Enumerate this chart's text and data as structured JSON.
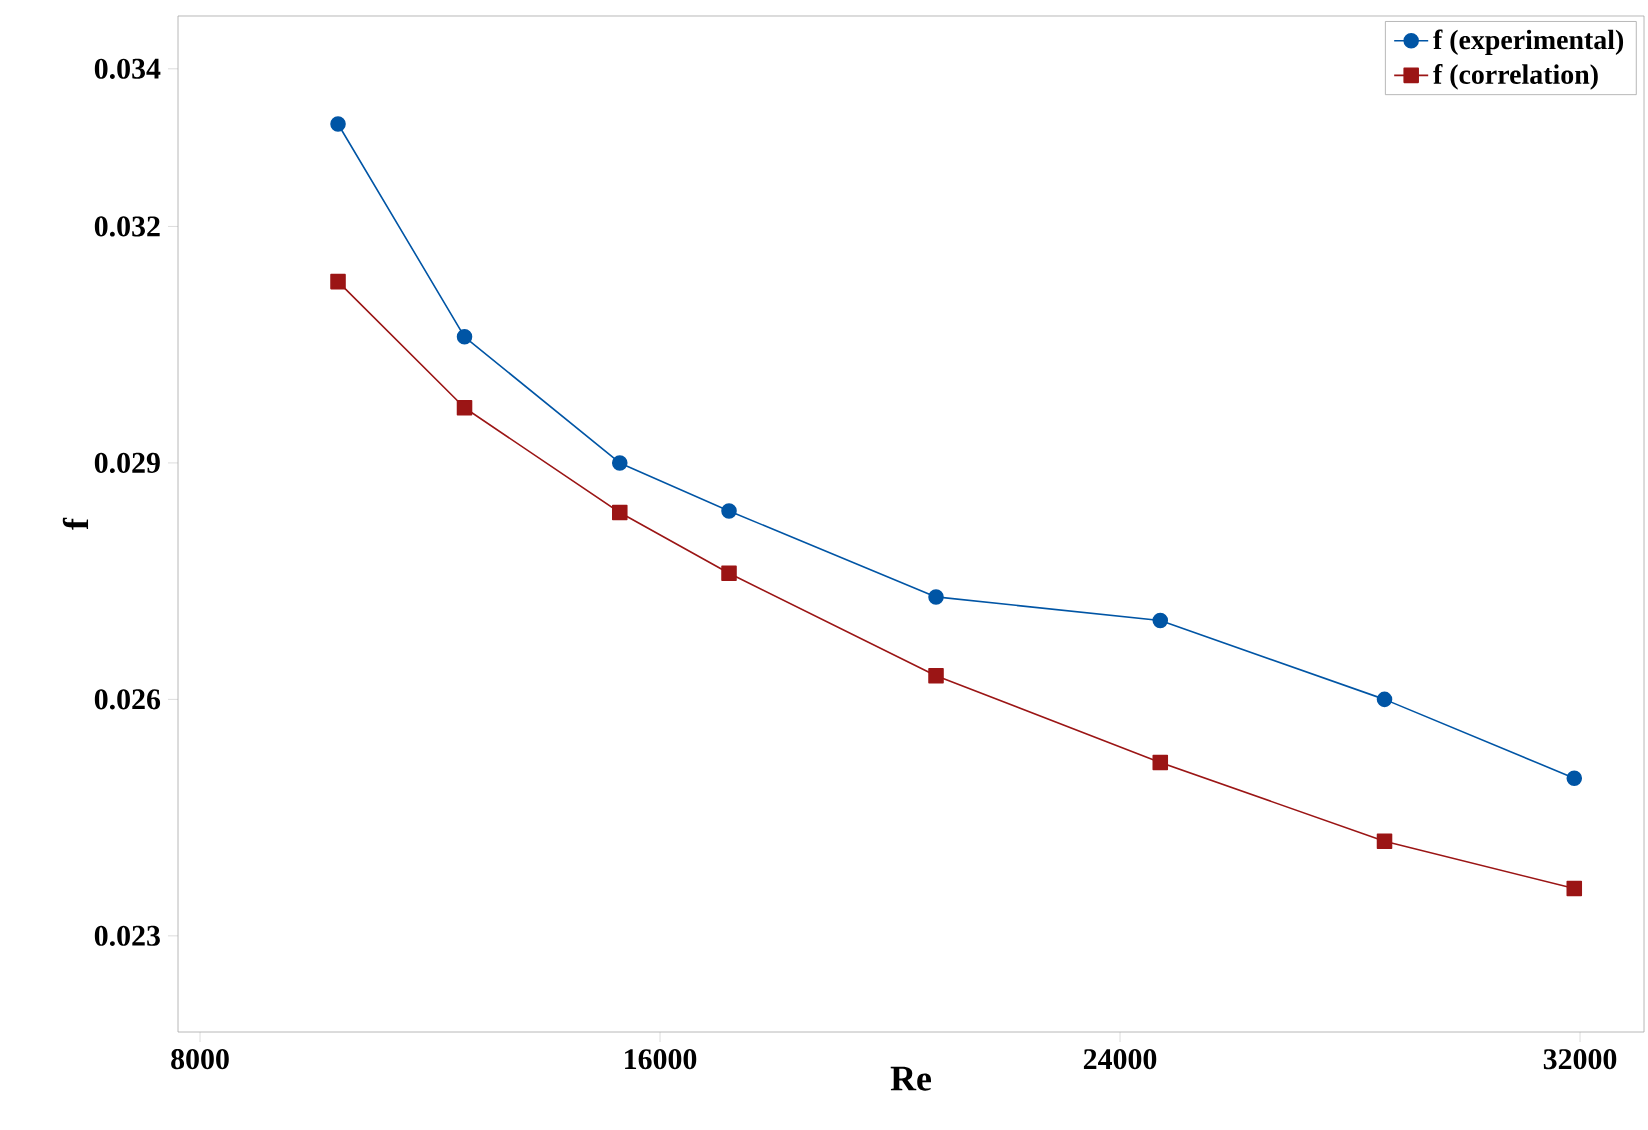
{
  "chart_data": {
    "type": "line",
    "xlabel": "Re",
    "ylabel": "f",
    "x": [
      10400,
      12600,
      15300,
      17200,
      20800,
      24700,
      28600,
      31900
    ],
    "series": [
      {
        "name": "f (experimental)",
        "color": "#0055a5",
        "marker": "circle",
        "values": [
          0.0333,
          0.0306,
          0.029,
          0.02839,
          0.0273,
          0.027,
          0.026,
          0.025
        ]
      },
      {
        "name": "f (correlation)",
        "color": "#9b1515",
        "marker": "square",
        "values": [
          0.0313,
          0.0297,
          0.02837,
          0.0276,
          0.0263,
          0.0252,
          0.0242,
          0.0236
        ]
      }
    ],
    "xlim": [
      7617,
      33113
    ],
    "ylim": [
      0.02178,
      0.03467
    ],
    "xticks": [
      8000,
      16000,
      24000,
      32000
    ],
    "yticks": [
      0.023,
      0.026,
      0.029,
      0.032,
      0.034
    ],
    "grid": false,
    "legend": "top right",
    "line_style": "solid"
  }
}
